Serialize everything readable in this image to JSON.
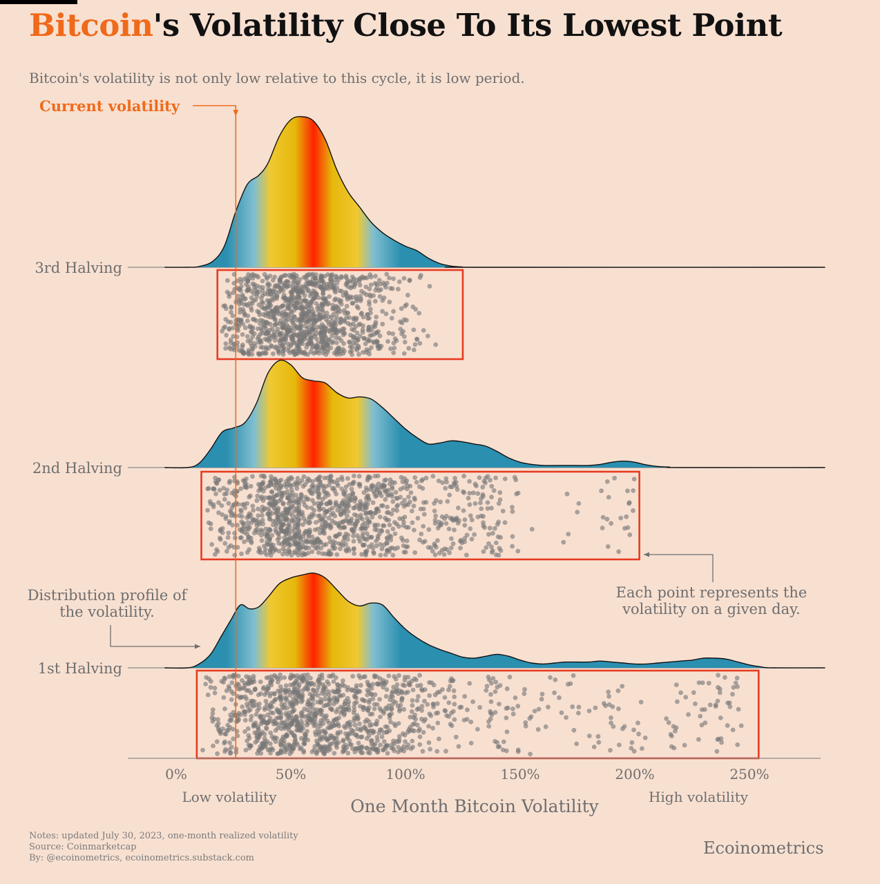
{
  "header": {
    "title_accent": "Bitcoin",
    "title_rest": "'s Volatility Close To Its Lowest Point",
    "subtitle": "Bitcoin's volatility is not only low relative to this cycle, it is low period."
  },
  "chart_data": {
    "type": "ridgeline",
    "xlabel": "One Month Bitcoin Volatility",
    "xlim": [
      -5,
      283
    ],
    "x_ticks": [
      0,
      50,
      100,
      150,
      200,
      250
    ],
    "x_tick_labels": [
      "0%",
      "50%",
      "100%",
      "150%",
      "200%",
      "250%"
    ],
    "x_range_labels": {
      "low": "Low volatility",
      "high": "High volatility"
    },
    "current_volatility": 26,
    "current_volatility_label": "Current volatility",
    "series": [
      {
        "name": "3rd Halving",
        "density": [
          [
            -5,
            0
          ],
          [
            5,
            0
          ],
          [
            10,
            0.005
          ],
          [
            16,
            0.04
          ],
          [
            21,
            0.14
          ],
          [
            26,
            0.37
          ],
          [
            31,
            0.55
          ],
          [
            36,
            0.61
          ],
          [
            40,
            0.69
          ],
          [
            45,
            0.87
          ],
          [
            50,
            0.98
          ],
          [
            55,
            1.0
          ],
          [
            60,
            0.97
          ],
          [
            65,
            0.85
          ],
          [
            70,
            0.65
          ],
          [
            75,
            0.5
          ],
          [
            80,
            0.4
          ],
          [
            85,
            0.3
          ],
          [
            90,
            0.23
          ],
          [
            95,
            0.18
          ],
          [
            100,
            0.14
          ],
          [
            105,
            0.11
          ],
          [
            110,
            0.06
          ],
          [
            115,
            0.025
          ],
          [
            120,
            0.008
          ],
          [
            125,
            0.002
          ],
          [
            130,
            0
          ],
          [
            283,
            0
          ]
        ],
        "points_range": [
          18,
          125
        ]
      },
      {
        "name": "2nd Halving",
        "density": [
          [
            -5,
            0
          ],
          [
            5,
            0
          ],
          [
            10,
            0.04
          ],
          [
            15,
            0.17
          ],
          [
            20,
            0.33
          ],
          [
            25,
            0.37
          ],
          [
            30,
            0.42
          ],
          [
            35,
            0.6
          ],
          [
            40,
            0.88
          ],
          [
            45,
            1.0
          ],
          [
            50,
            0.96
          ],
          [
            55,
            0.84
          ],
          [
            60,
            0.81
          ],
          [
            65,
            0.79
          ],
          [
            70,
            0.7
          ],
          [
            75,
            0.65
          ],
          [
            80,
            0.66
          ],
          [
            85,
            0.64
          ],
          [
            90,
            0.56
          ],
          [
            95,
            0.46
          ],
          [
            100,
            0.36
          ],
          [
            105,
            0.28
          ],
          [
            110,
            0.22
          ],
          [
            115,
            0.23
          ],
          [
            120,
            0.25
          ],
          [
            125,
            0.24
          ],
          [
            130,
            0.22
          ],
          [
            135,
            0.2
          ],
          [
            140,
            0.15
          ],
          [
            145,
            0.09
          ],
          [
            150,
            0.05
          ],
          [
            155,
            0.03
          ],
          [
            160,
            0.02
          ],
          [
            170,
            0.02
          ],
          [
            180,
            0.02
          ],
          [
            185,
            0.03
          ],
          [
            190,
            0.05
          ],
          [
            195,
            0.06
          ],
          [
            200,
            0.05
          ],
          [
            205,
            0.025
          ],
          [
            210,
            0.01
          ],
          [
            215,
            0.005
          ],
          [
            220,
            0
          ],
          [
            283,
            0
          ]
        ],
        "points_range": [
          11,
          202
        ]
      },
      {
        "name": "1st Halving",
        "density": [
          [
            -5,
            0
          ],
          [
            5,
            0
          ],
          [
            10,
            0.04
          ],
          [
            15,
            0.14
          ],
          [
            20,
            0.34
          ],
          [
            24,
            0.5
          ],
          [
            28,
            0.65
          ],
          [
            32,
            0.61
          ],
          [
            36,
            0.63
          ],
          [
            40,
            0.73
          ],
          [
            45,
            0.87
          ],
          [
            50,
            0.93
          ],
          [
            55,
            0.96
          ],
          [
            60,
            0.98
          ],
          [
            65,
            0.93
          ],
          [
            70,
            0.81
          ],
          [
            75,
            0.69
          ],
          [
            80,
            0.64
          ],
          [
            85,
            0.67
          ],
          [
            90,
            0.65
          ],
          [
            95,
            0.52
          ],
          [
            100,
            0.4
          ],
          [
            105,
            0.31
          ],
          [
            110,
            0.24
          ],
          [
            115,
            0.19
          ],
          [
            120,
            0.15
          ],
          [
            125,
            0.11
          ],
          [
            130,
            0.1
          ],
          [
            135,
            0.12
          ],
          [
            140,
            0.14
          ],
          [
            145,
            0.12
          ],
          [
            150,
            0.08
          ],
          [
            155,
            0.05
          ],
          [
            160,
            0.04
          ],
          [
            165,
            0.05
          ],
          [
            170,
            0.06
          ],
          [
            175,
            0.06
          ],
          [
            180,
            0.06
          ],
          [
            185,
            0.07
          ],
          [
            190,
            0.06
          ],
          [
            195,
            0.05
          ],
          [
            200,
            0.04
          ],
          [
            205,
            0.04
          ],
          [
            210,
            0.05
          ],
          [
            215,
            0.06
          ],
          [
            220,
            0.07
          ],
          [
            225,
            0.08
          ],
          [
            230,
            0.1
          ],
          [
            235,
            0.1
          ],
          [
            240,
            0.09
          ],
          [
            245,
            0.06
          ],
          [
            250,
            0.03
          ],
          [
            255,
            0.01
          ],
          [
            260,
            0
          ],
          [
            283,
            0
          ]
        ],
        "points_range": [
          9,
          254
        ]
      }
    ],
    "annotations": {
      "distribution": [
        "Distribution profile of",
        "the volatility."
      ],
      "points": [
        "Each point represents the",
        "volatility on a given day."
      ]
    }
  },
  "footer": {
    "notes": "Notes: updated July 30, 2023, one-month realized volatility",
    "source": "Source: Coinmarketcap",
    "by": "By: @ecoinometrics, ecoinometrics.substack.com",
    "brand": "Ecoinometrics"
  },
  "colors": {
    "accent": "#ef6a1a",
    "background": "#f8e0d1",
    "box": "#e63b1f",
    "point": "#777777",
    "gradient": [
      "#2b8fb0",
      "#7fbed0",
      "#f0c832",
      "#e5b80a",
      "#ff2200"
    ]
  }
}
